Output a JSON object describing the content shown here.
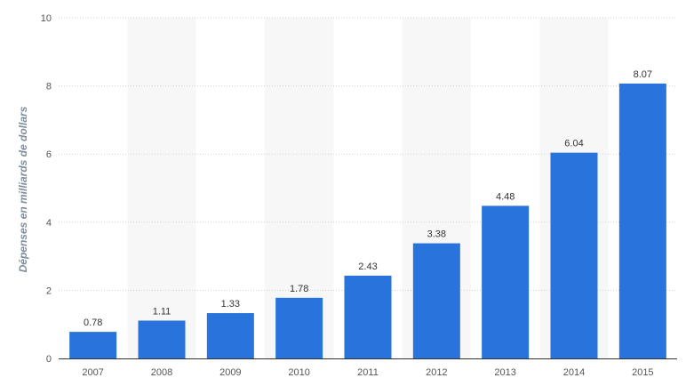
{
  "chart_data": {
    "type": "bar",
    "title": "",
    "xlabel": "",
    "ylabel": "Dépenses en milliards de dollars",
    "categories": [
      "2007",
      "2008",
      "2009",
      "2010",
      "2011",
      "2012",
      "2013",
      "2014",
      "2015"
    ],
    "values": [
      0.78,
      1.11,
      1.33,
      1.78,
      2.43,
      3.38,
      4.48,
      6.04,
      8.07
    ],
    "value_labels": [
      "0.78",
      "1.11",
      "1.33",
      "1.78",
      "2.43",
      "3.38",
      "4.48",
      "6.04",
      "8.07"
    ],
    "ylim": [
      0,
      10
    ],
    "yticks": [
      0,
      2,
      4,
      6,
      8,
      10
    ],
    "ytick_labels": [
      "0",
      "2",
      "4",
      "6",
      "8",
      "10"
    ],
    "grid": true,
    "legend": "none",
    "colors": {
      "bar": "#2873dc",
      "alt_band": "#f7f7f7",
      "grid": "#d3d3d3",
      "axis": "#333333"
    }
  }
}
